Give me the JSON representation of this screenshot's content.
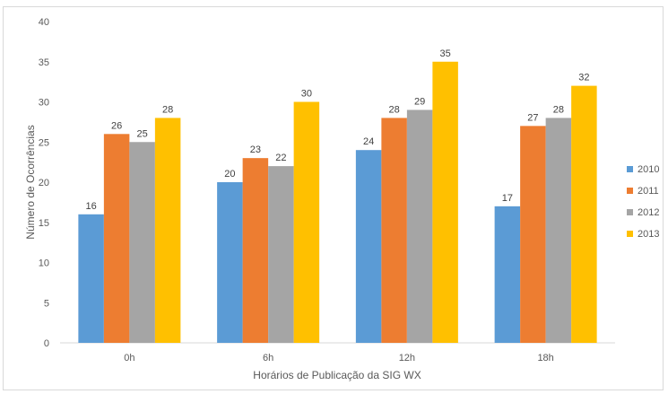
{
  "chart_data": {
    "type": "bar",
    "title": "",
    "xlabel": "Horários de Publicação da SIG WX",
    "ylabel": "Número de Ocorrências",
    "categories": [
      "0h",
      "6h",
      "12h",
      "18h"
    ],
    "ylim": [
      0,
      40
    ],
    "yticks": [
      0,
      5,
      10,
      15,
      20,
      25,
      30,
      35,
      40
    ],
    "grid": false,
    "legend_position": "right",
    "series": [
      {
        "name": "2010",
        "color": "#5b9bd5",
        "values": [
          16,
          20,
          24,
          17
        ]
      },
      {
        "name": "2011",
        "color": "#ed7d31",
        "values": [
          26,
          23,
          28,
          27
        ]
      },
      {
        "name": "2012",
        "color": "#a5a5a5",
        "values": [
          25,
          22,
          29,
          28
        ]
      },
      {
        "name": "2013",
        "color": "#ffc000",
        "values": [
          28,
          30,
          35,
          32
        ]
      }
    ]
  }
}
